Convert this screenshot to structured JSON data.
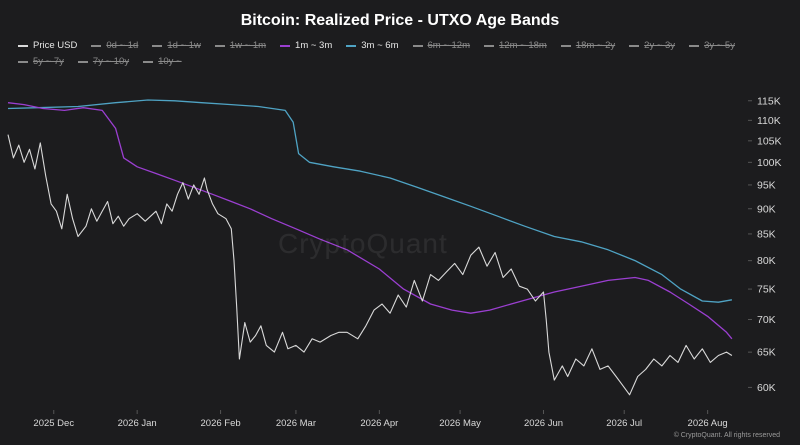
{
  "title": "Bitcoin: Realized Price - UTXO Age Bands",
  "watermark": "CryptoQuant",
  "credit": "© CryptoQuant. All rights reserved",
  "legend": [
    {
      "label": "Price USD",
      "color": "#d9d9d9",
      "hidden": false
    },
    {
      "label": "0d ~ 1d",
      "color": "#8a8a8a",
      "hidden": true
    },
    {
      "label": "1d ~ 1w",
      "color": "#8a8a8a",
      "hidden": true
    },
    {
      "label": "1w ~ 1m",
      "color": "#8a8a8a",
      "hidden": true
    },
    {
      "label": "1m ~ 3m",
      "color": "#9b3fd1",
      "hidden": false
    },
    {
      "label": "3m ~ 6m",
      "color": "#4fa3c4",
      "hidden": false
    },
    {
      "label": "6m ~ 12m",
      "color": "#8a8a8a",
      "hidden": true
    },
    {
      "label": "12m ~ 18m",
      "color": "#8a8a8a",
      "hidden": true
    },
    {
      "label": "18m ~ 2y",
      "color": "#8a8a8a",
      "hidden": true
    },
    {
      "label": "2y ~ 3y",
      "color": "#8a8a8a",
      "hidden": true
    },
    {
      "label": "3y ~ 5y",
      "color": "#8a8a8a",
      "hidden": true
    },
    {
      "label": "5y ~ 7y",
      "color": "#8a8a8a",
      "hidden": true
    },
    {
      "label": "7y ~ 10y",
      "color": "#8a8a8a",
      "hidden": true
    },
    {
      "label": "10y ~",
      "color": "#8a8a8a",
      "hidden": true
    }
  ],
  "chart_data": {
    "type": "line",
    "title": "Bitcoin: Realized Price - UTXO Age Bands",
    "xlabel": "",
    "ylabel": "",
    "y_scale": "log",
    "ylim": [
      57000,
      120000
    ],
    "y_ticks": [
      60000,
      65000,
      70000,
      75000,
      80000,
      85000,
      90000,
      95000,
      100000,
      105000,
      110000,
      115000
    ],
    "y_tick_labels": [
      "60K",
      "65K",
      "70K",
      "75K",
      "80K",
      "85K",
      "90K",
      "95K",
      "100K",
      "105K",
      "110K",
      "115K"
    ],
    "xlim": [
      "2025-11-14",
      "2026-08-16"
    ],
    "x_ticks": [
      "2025-12-01",
      "2026-01-01",
      "2026-02-01",
      "2026-03-01",
      "2026-04-01",
      "2026-05-01",
      "2026-06-01",
      "2026-07-01",
      "2026-08-01"
    ],
    "x_tick_labels": [
      "2025 Dec",
      "2026 Jan",
      "2026 Feb",
      "2026 Mar",
      "2026 Apr",
      "2026 May",
      "2026 Jun",
      "2026 Jul",
      "2026 Aug"
    ],
    "grid": false,
    "legend_position": "top",
    "series": [
      {
        "name": "Price USD",
        "color": "#d9d9d9",
        "points": [
          [
            "2025-11-14",
            106500
          ],
          [
            "2025-11-16",
            101000
          ],
          [
            "2025-11-18",
            104000
          ],
          [
            "2025-11-20",
            100000
          ],
          [
            "2025-11-22",
            103000
          ],
          [
            "2025-11-24",
            98500
          ],
          [
            "2025-11-26",
            104500
          ],
          [
            "2025-11-28",
            97000
          ],
          [
            "2025-11-30",
            91000
          ],
          [
            "2025-12-02",
            89500
          ],
          [
            "2025-12-04",
            86000
          ],
          [
            "2025-12-06",
            93000
          ],
          [
            "2025-12-08",
            88000
          ],
          [
            "2025-12-10",
            84500
          ],
          [
            "2025-12-13",
            86500
          ],
          [
            "2025-12-15",
            90000
          ],
          [
            "2025-12-17",
            87500
          ],
          [
            "2025-12-19",
            89500
          ],
          [
            "2025-12-21",
            91500
          ],
          [
            "2025-12-23",
            87000
          ],
          [
            "2025-12-25",
            88500
          ],
          [
            "2025-12-27",
            86500
          ],
          [
            "2025-12-29",
            88000
          ],
          [
            "2026-01-01",
            89000
          ],
          [
            "2026-01-04",
            87500
          ],
          [
            "2026-01-06",
            88500
          ],
          [
            "2026-01-08",
            89500
          ],
          [
            "2026-01-10",
            87000
          ],
          [
            "2026-01-12",
            91000
          ],
          [
            "2026-01-14",
            89500
          ],
          [
            "2026-01-16",
            93000
          ],
          [
            "2026-01-18",
            95500
          ],
          [
            "2026-01-20",
            92000
          ],
          [
            "2026-01-22",
            95000
          ],
          [
            "2026-01-24",
            93000
          ],
          [
            "2026-01-26",
            96500
          ],
          [
            "2026-01-27",
            94000
          ],
          [
            "2026-01-29",
            91000
          ],
          [
            "2026-01-31",
            89000
          ],
          [
            "2026-02-03",
            88000
          ],
          [
            "2026-02-05",
            86000
          ],
          [
            "2026-02-06",
            80000
          ],
          [
            "2026-02-07",
            72000
          ],
          [
            "2026-02-08",
            64000
          ],
          [
            "2026-02-10",
            69500
          ],
          [
            "2026-02-12",
            66500
          ],
          [
            "2026-02-14",
            67500
          ],
          [
            "2026-02-16",
            69000
          ],
          [
            "2026-02-18",
            66000
          ],
          [
            "2026-02-21",
            65000
          ],
          [
            "2026-02-24",
            68000
          ],
          [
            "2026-02-26",
            65500
          ],
          [
            "2026-03-01",
            66000
          ],
          [
            "2026-03-04",
            65000
          ],
          [
            "2026-03-07",
            67000
          ],
          [
            "2026-03-10",
            66500
          ],
          [
            "2026-03-14",
            67500
          ],
          [
            "2026-03-17",
            68000
          ],
          [
            "2026-03-20",
            68000
          ],
          [
            "2026-03-24",
            67000
          ],
          [
            "2026-03-27",
            69000
          ],
          [
            "2026-03-30",
            71500
          ],
          [
            "2026-04-02",
            72500
          ],
          [
            "2026-04-05",
            71000
          ],
          [
            "2026-04-08",
            74000
          ],
          [
            "2026-04-11",
            72000
          ],
          [
            "2026-04-14",
            76500
          ],
          [
            "2026-04-17",
            73000
          ],
          [
            "2026-04-20",
            77500
          ],
          [
            "2026-04-23",
            76500
          ],
          [
            "2026-04-26",
            78000
          ],
          [
            "2026-04-29",
            79500
          ],
          [
            "2026-05-02",
            77500
          ],
          [
            "2026-05-05",
            81000
          ],
          [
            "2026-05-08",
            82500
          ],
          [
            "2026-05-11",
            79000
          ],
          [
            "2026-05-14",
            81500
          ],
          [
            "2026-05-17",
            77000
          ],
          [
            "2026-05-20",
            78500
          ],
          [
            "2026-05-23",
            75500
          ],
          [
            "2026-05-26",
            75000
          ],
          [
            "2026-05-29",
            73000
          ],
          [
            "2026-06-01",
            74500
          ],
          [
            "2026-06-02",
            70000
          ],
          [
            "2026-06-03",
            65000
          ],
          [
            "2026-06-05",
            61000
          ],
          [
            "2026-06-08",
            63000
          ],
          [
            "2026-06-10",
            61500
          ],
          [
            "2026-06-13",
            64000
          ],
          [
            "2026-06-16",
            63000
          ],
          [
            "2026-06-19",
            65500
          ],
          [
            "2026-06-22",
            62500
          ],
          [
            "2026-06-25",
            63000
          ],
          [
            "2026-06-28",
            61500
          ],
          [
            "2026-07-01",
            60000
          ],
          [
            "2026-07-03",
            59000
          ],
          [
            "2026-07-06",
            61500
          ],
          [
            "2026-07-09",
            62500
          ],
          [
            "2026-07-12",
            64000
          ],
          [
            "2026-07-15",
            63000
          ],
          [
            "2026-07-18",
            64500
          ],
          [
            "2026-07-21",
            63500
          ],
          [
            "2026-07-24",
            66000
          ],
          [
            "2026-07-27",
            64000
          ],
          [
            "2026-07-30",
            65500
          ],
          [
            "2026-08-02",
            63500
          ],
          [
            "2026-08-05",
            64500
          ],
          [
            "2026-08-08",
            65000
          ],
          [
            "2026-08-10",
            64500
          ]
        ]
      },
      {
        "name": "1m ~ 3m",
        "color": "#9b3fd1",
        "points": [
          [
            "2025-11-14",
            114500
          ],
          [
            "2025-11-20",
            114000
          ],
          [
            "2025-11-27",
            113000
          ],
          [
            "2025-12-05",
            112500
          ],
          [
            "2025-12-12",
            113200
          ],
          [
            "2025-12-19",
            112500
          ],
          [
            "2025-12-24",
            108000
          ],
          [
            "2025-12-27",
            101000
          ],
          [
            "2026-01-01",
            99000
          ],
          [
            "2026-01-08",
            97500
          ],
          [
            "2026-01-15",
            96000
          ],
          [
            "2026-01-22",
            94500
          ],
          [
            "2026-01-29",
            93000
          ],
          [
            "2026-02-05",
            91500
          ],
          [
            "2026-02-12",
            90000
          ],
          [
            "2026-02-20",
            88000
          ],
          [
            "2026-03-01",
            86000
          ],
          [
            "2026-03-10",
            84000
          ],
          [
            "2026-03-20",
            82000
          ],
          [
            "2026-04-01",
            78500
          ],
          [
            "2026-04-10",
            75000
          ],
          [
            "2026-04-20",
            72500
          ],
          [
            "2026-04-28",
            71500
          ],
          [
            "2026-05-05",
            71000
          ],
          [
            "2026-05-12",
            71500
          ],
          [
            "2026-05-20",
            72500
          ],
          [
            "2026-05-28",
            73500
          ],
          [
            "2026-06-05",
            74500
          ],
          [
            "2026-06-15",
            75500
          ],
          [
            "2026-06-25",
            76500
          ],
          [
            "2026-07-05",
            77000
          ],
          [
            "2026-07-10",
            76500
          ],
          [
            "2026-07-18",
            74500
          ],
          [
            "2026-07-25",
            72500
          ],
          [
            "2026-08-01",
            70500
          ],
          [
            "2026-08-08",
            68000
          ],
          [
            "2026-08-10",
            67000
          ]
        ]
      },
      {
        "name": "3m ~ 6m",
        "color": "#4fa3c4",
        "points": [
          [
            "2025-11-14",
            113000
          ],
          [
            "2025-11-25",
            113200
          ],
          [
            "2025-12-10",
            113500
          ],
          [
            "2025-12-24",
            114500
          ],
          [
            "2026-01-05",
            115200
          ],
          [
            "2026-01-15",
            115000
          ],
          [
            "2026-01-25",
            114500
          ],
          [
            "2026-02-05",
            114000
          ],
          [
            "2026-02-15",
            113500
          ],
          [
            "2026-02-25",
            112500
          ],
          [
            "2026-02-28",
            109500
          ],
          [
            "2026-03-02",
            102000
          ],
          [
            "2026-03-06",
            100000
          ],
          [
            "2026-03-15",
            99000
          ],
          [
            "2026-03-25",
            98000
          ],
          [
            "2026-04-05",
            96500
          ],
          [
            "2026-04-15",
            94500
          ],
          [
            "2026-04-25",
            92500
          ],
          [
            "2026-05-05",
            90500
          ],
          [
            "2026-05-15",
            88500
          ],
          [
            "2026-05-25",
            86500
          ],
          [
            "2026-06-05",
            84500
          ],
          [
            "2026-06-15",
            83500
          ],
          [
            "2026-06-25",
            82000
          ],
          [
            "2026-07-05",
            80000
          ],
          [
            "2026-07-15",
            77500
          ],
          [
            "2026-07-22",
            75000
          ],
          [
            "2026-07-30",
            73000
          ],
          [
            "2026-08-05",
            72800
          ],
          [
            "2026-08-10",
            73200
          ]
        ]
      }
    ]
  }
}
